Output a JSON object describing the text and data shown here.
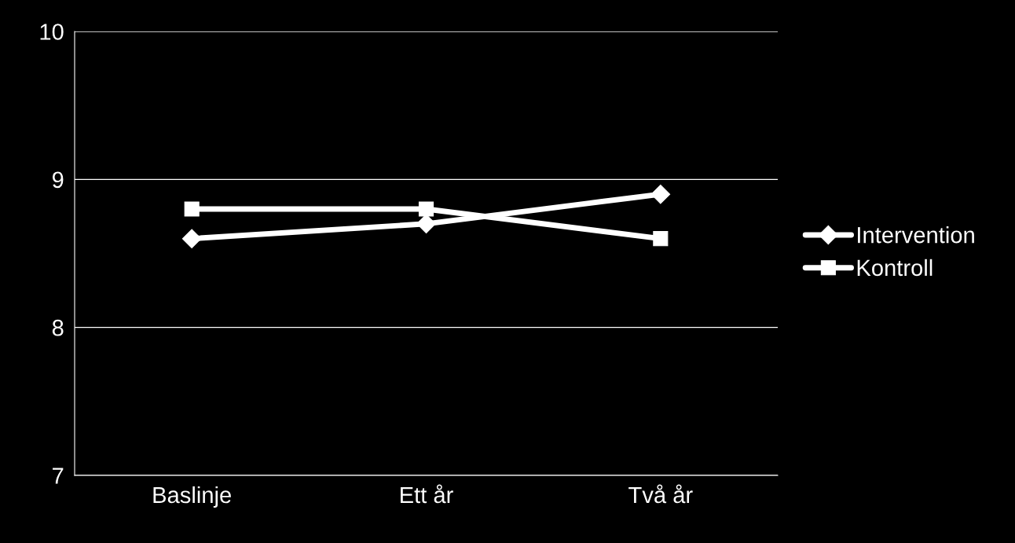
{
  "chart_data": {
    "type": "line",
    "categories": [
      "Baslinje",
      "Ett år",
      "Två år"
    ],
    "series": [
      {
        "name": "Intervention",
        "color": "#ffffff",
        "values": [
          8.6,
          8.7,
          8.9
        ],
        "marker": "diamond"
      },
      {
        "name": "Kontroll",
        "color": "#ffffff",
        "values": [
          8.8,
          8.8,
          8.6
        ],
        "marker": "square"
      }
    ],
    "ylim": [
      7,
      10
    ],
    "yticks": [
      7,
      8,
      9,
      10
    ],
    "grid": "y",
    "legend": "right",
    "line_style": "solid"
  }
}
